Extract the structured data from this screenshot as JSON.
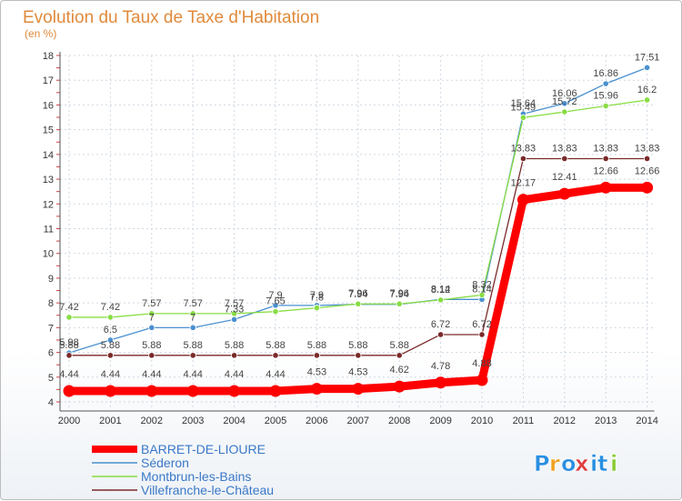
{
  "chart_data": {
    "type": "line",
    "title": "Evolution du Taux de Taxe d'Habitation",
    "subtitle": "(en %)",
    "xlabel": "",
    "ylabel": "",
    "ylim": [
      4,
      18
    ],
    "yticks": [
      "4",
      "5",
      "6",
      "7",
      "8",
      "9",
      "10",
      "11",
      "12",
      "13",
      "14",
      "15",
      "16",
      "17",
      "18"
    ],
    "categories": [
      "2000",
      "2001",
      "2002",
      "2003",
      "2004",
      "2005",
      "2006",
      "2007",
      "2008",
      "2009",
      "2010",
      "2011",
      "2012",
      "2013",
      "2014"
    ],
    "series": [
      {
        "name": "BARRET-DE-LIOURE",
        "color": "#ff0000",
        "values": [
          4.44,
          4.44,
          4.44,
          4.44,
          4.44,
          4.44,
          4.53,
          4.53,
          4.62,
          4.78,
          4.88,
          12.17,
          12.41,
          12.66,
          12.66
        ],
        "labels": [
          "4.44",
          "4.44",
          "4.44",
          "4.44",
          "4.44",
          "4.44",
          "4.53",
          "4.53",
          "4.62",
          "4.78",
          "4.88",
          "12.17",
          "12.41",
          "12.66",
          "12.66"
        ]
      },
      {
        "name": "Séderon",
        "color": "#4a90d0",
        "values": [
          5.98,
          6.5,
          7.0,
          7.0,
          7.33,
          7.9,
          7.9,
          7.94,
          7.94,
          8.14,
          8.14,
          15.64,
          16.06,
          16.86,
          17.51
        ],
        "labels": [
          "5.98",
          "6.5",
          "7",
          "7",
          "7.33",
          "7.9",
          "7.9",
          "7.94",
          "7.94",
          "8.14",
          "8.14",
          "15.64",
          "16.06",
          "16.86",
          "17.51"
        ]
      },
      {
        "name": "Montbrun-les-Bains",
        "color": "#88dd44",
        "values": [
          7.42,
          7.42,
          7.57,
          7.57,
          7.57,
          7.65,
          7.8,
          7.96,
          7.96,
          8.12,
          8.32,
          15.49,
          15.72,
          15.96,
          16.2
        ],
        "labels": [
          "7.42",
          "7.42",
          "7.57",
          "7.57",
          "7.57",
          "7.65",
          "7.8",
          "7.96",
          "7.96",
          "8.12",
          "8.32",
          "15.49",
          "15.72",
          "15.96",
          "16.2"
        ]
      },
      {
        "name": "Villefranche-le-Château",
        "color": "#7a2a2a",
        "values": [
          5.88,
          5.88,
          5.88,
          5.88,
          5.88,
          5.88,
          5.88,
          5.88,
          5.88,
          6.72,
          6.72,
          13.83,
          13.83,
          13.83,
          13.83
        ],
        "labels": [
          "5.88",
          "5.88",
          "5.88",
          "5.88",
          "5.88",
          "5.88",
          "5.88",
          "5.88",
          "5.88",
          "6.72",
          "6.72",
          "13.83",
          "13.83",
          "13.83",
          "13.83"
        ]
      }
    ],
    "legend_position": "bottom-left"
  },
  "logo": {
    "text": "Proxiti",
    "letters": [
      "P",
      "r",
      "o",
      "x",
      "i",
      "t",
      "i"
    ],
    "colors": [
      "#2a8fe0",
      "#f0a020",
      "#2a8fe0",
      "#e04040",
      "#2a8fe0",
      "#2a8fe0",
      "#88cc33"
    ]
  }
}
